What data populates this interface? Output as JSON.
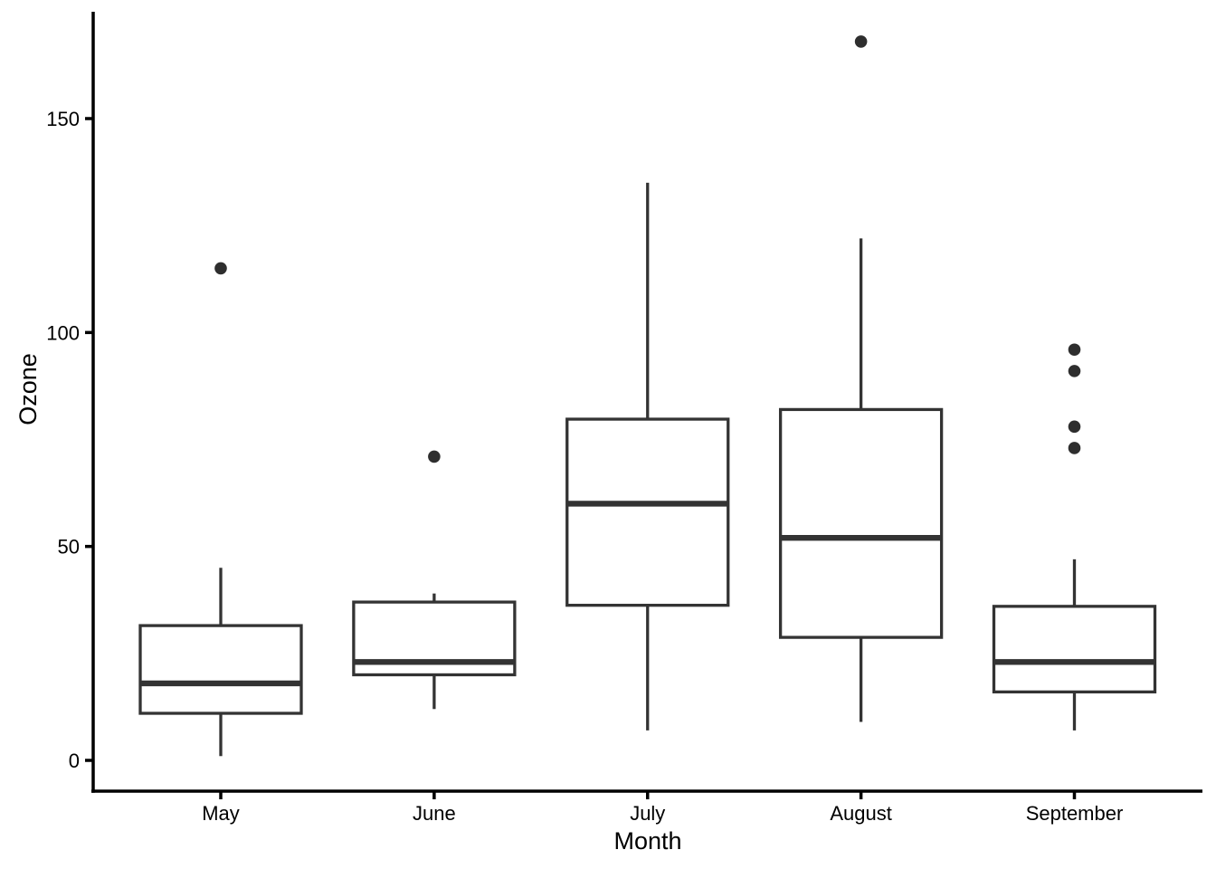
{
  "chart_data": {
    "type": "boxplot",
    "title": "",
    "xlabel": "Month",
    "ylabel": "Ozone",
    "categories": [
      "May",
      "June",
      "July",
      "August",
      "September"
    ],
    "yticks": [
      0,
      50,
      100,
      150
    ],
    "ylim": [
      -7,
      175
    ],
    "grid": false,
    "legend": "none",
    "series": [
      {
        "category": "May",
        "whisker_low": 1,
        "q1": 11,
        "median": 18,
        "q3": 31.5,
        "whisker_high": 45,
        "outliers": [
          115
        ]
      },
      {
        "category": "June",
        "whisker_low": 12,
        "q1": 20,
        "median": 23,
        "q3": 37,
        "whisker_high": 39,
        "outliers": [
          71
        ]
      },
      {
        "category": "July",
        "whisker_low": 7,
        "q1": 36.25,
        "median": 60,
        "q3": 79.75,
        "whisker_high": 135,
        "outliers": []
      },
      {
        "category": "August",
        "whisker_low": 9,
        "q1": 28.75,
        "median": 52,
        "q3": 82,
        "whisker_high": 122,
        "outliers": [
          168
        ]
      },
      {
        "category": "September",
        "whisker_low": 7,
        "q1": 16,
        "median": 23,
        "q3": 36,
        "whisker_high": 47,
        "outliers": [
          96,
          91,
          78,
          73
        ]
      }
    ],
    "colors": {
      "box_stroke": "#333333",
      "box_fill": "#ffffff",
      "median": "#333333",
      "outlier": "#2e2e2e",
      "axis": "#000000",
      "text": "#000000",
      "background": "#ffffff"
    }
  }
}
